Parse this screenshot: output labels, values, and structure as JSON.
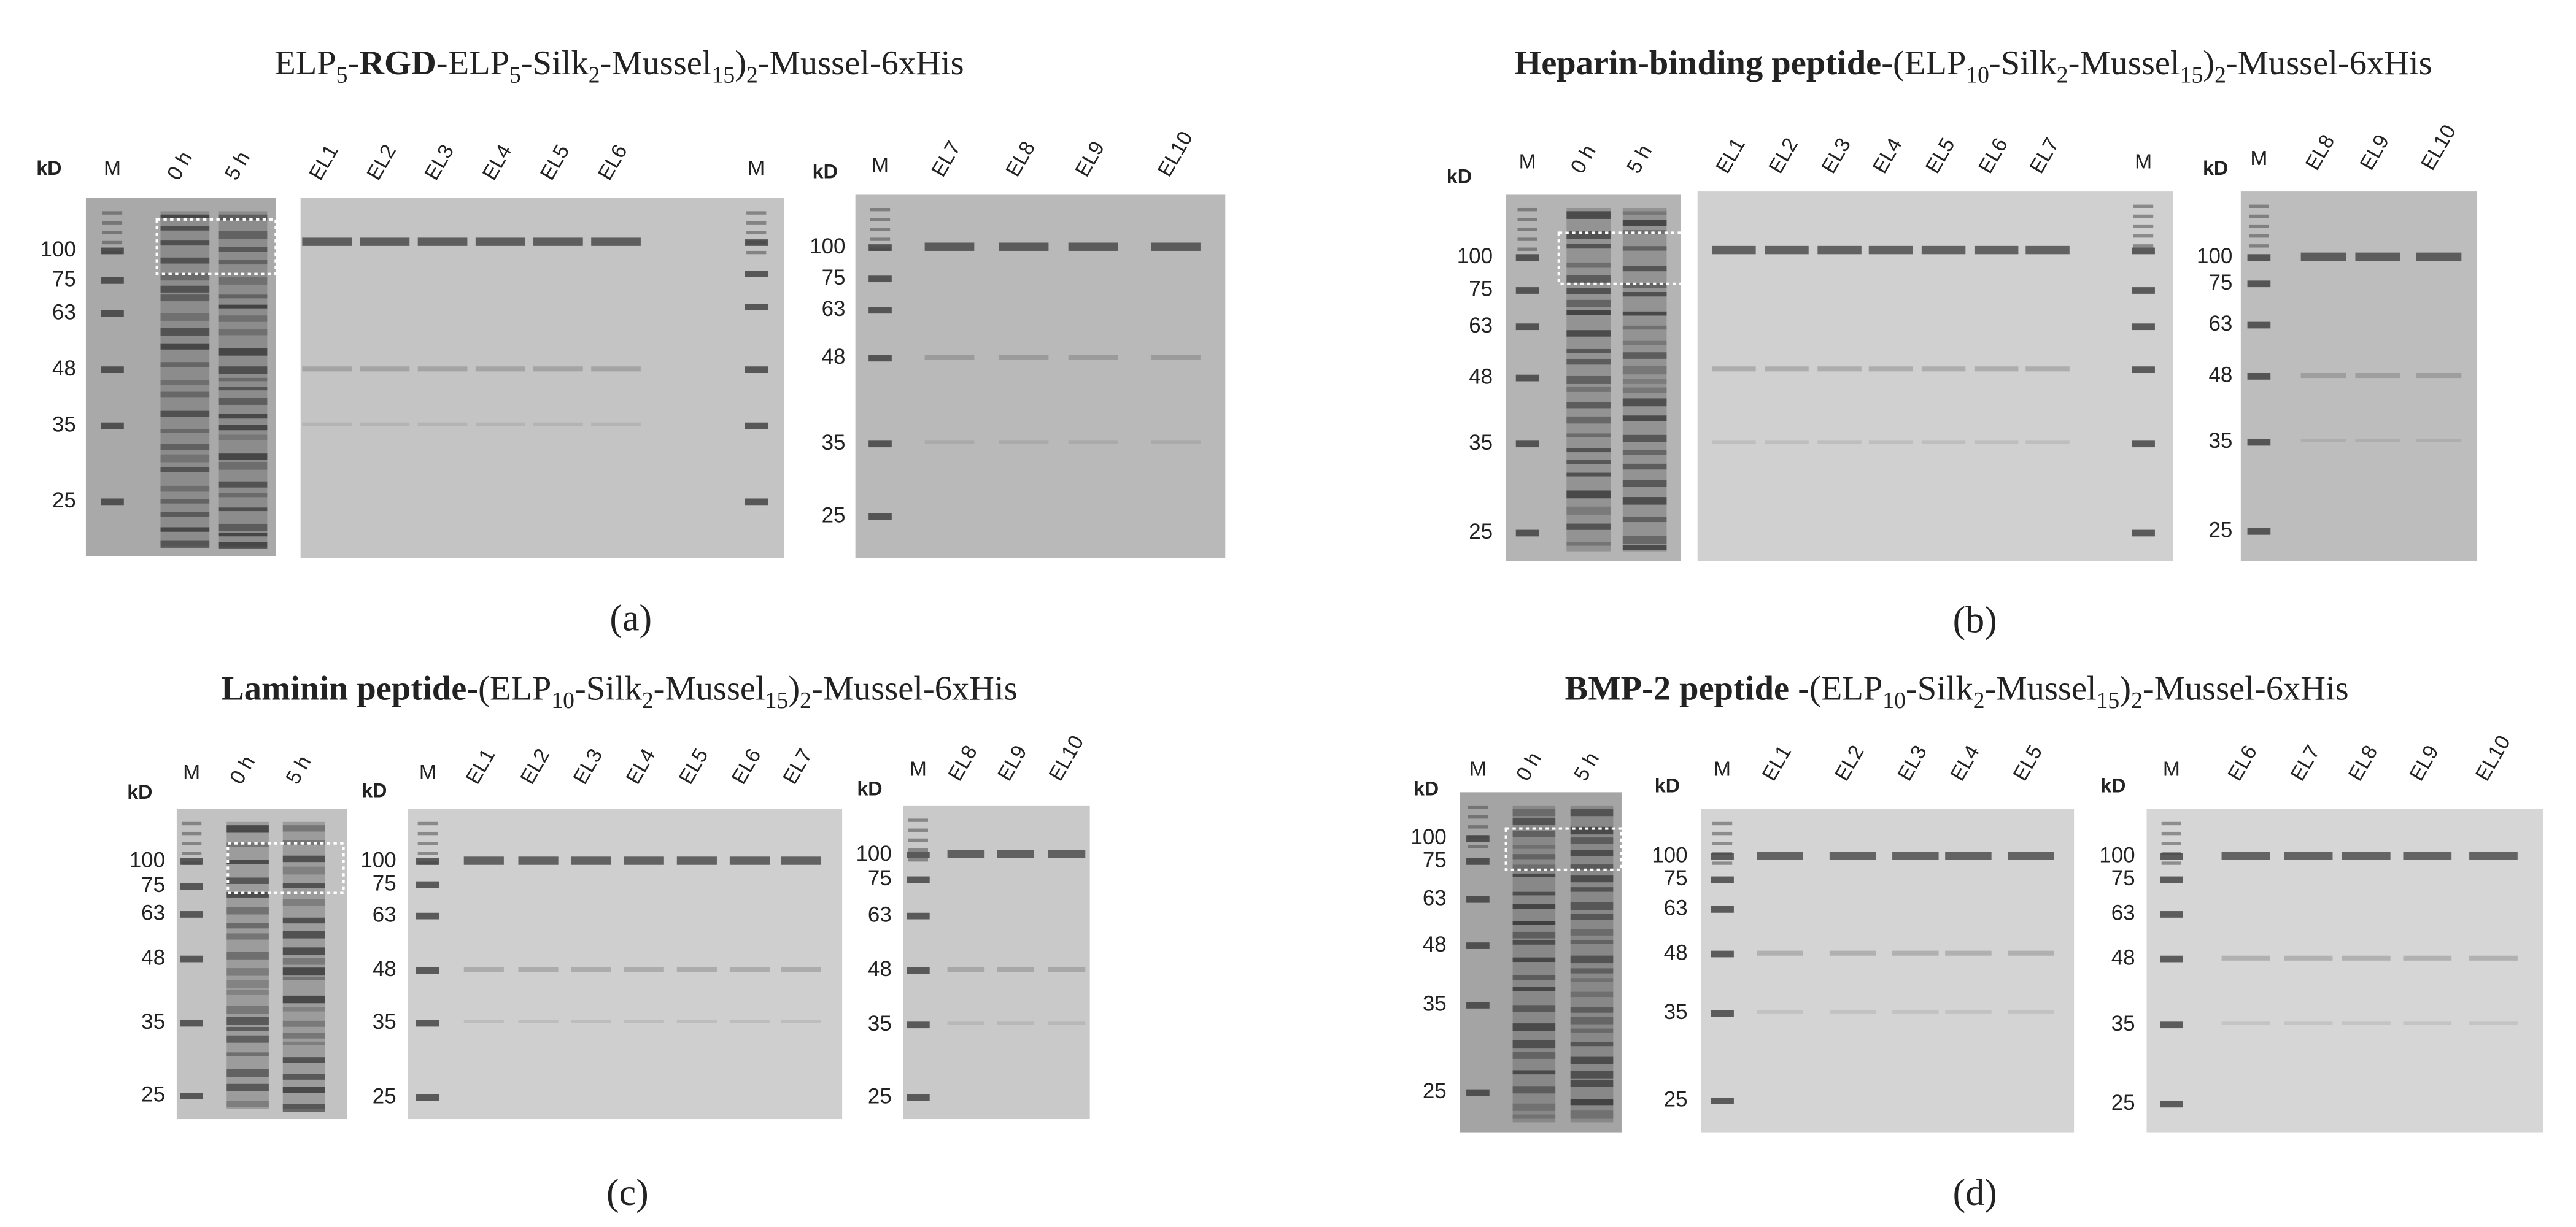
{
  "panels": [
    {
      "title": [
        {
          "text": "ELP",
          "style": "normal"
        },
        {
          "text": "5",
          "style": "sub"
        },
        {
          "text": "-",
          "style": "normal"
        },
        {
          "text": "RGD",
          "style": "bold"
        },
        {
          "text": "-ELP",
          "style": "normal"
        },
        {
          "text": "5",
          "style": "sub"
        },
        {
          "text": "-Silk",
          "style": "normal"
        },
        {
          "text": "2",
          "style": "sub"
        },
        {
          "text": "-Mussel",
          "style": "normal"
        },
        {
          "text": "15",
          "style": "sub"
        },
        {
          "text": ")",
          "style": "normal"
        },
        {
          "text": "2",
          "style": "sub"
        },
        {
          "text": "-Mussel-6xHis",
          "style": "normal"
        }
      ],
      "label": "(a)",
      "gels": [
        {
          "kd": "kD",
          "markers": [
            100,
            75,
            63,
            48,
            35,
            25
          ],
          "lanes": [
            "M",
            "0 h",
            "5 h"
          ]
        },
        {
          "lanes": [
            "EL1",
            "EL2",
            "EL3",
            "EL4",
            "EL5",
            "EL6",
            "M"
          ]
        },
        {
          "kd": "kD",
          "markers": [
            100,
            75,
            63,
            48,
            35,
            25
          ],
          "lanes": [
            "M",
            "EL7",
            "EL8",
            "EL9",
            "EL10"
          ]
        }
      ]
    },
    {
      "title": [
        {
          "text": "Heparin-binding peptide-",
          "style": "bold"
        },
        {
          "text": "(ELP",
          "style": "normal"
        },
        {
          "text": "10",
          "style": "sub"
        },
        {
          "text": "-Silk",
          "style": "normal"
        },
        {
          "text": "2",
          "style": "sub"
        },
        {
          "text": "-Mussel",
          "style": "normal"
        },
        {
          "text": "15",
          "style": "sub"
        },
        {
          "text": ")",
          "style": "normal"
        },
        {
          "text": "2",
          "style": "sub"
        },
        {
          "text": "-Mussel-6xHis",
          "style": "normal"
        }
      ],
      "label": "(b)",
      "gels": [
        {
          "kd": "kD",
          "markers": [
            100,
            75,
            63,
            48,
            35,
            25
          ],
          "lanes": [
            "M",
            "0 h",
            "5 h"
          ]
        },
        {
          "lanes": [
            "EL1",
            "EL2",
            "EL3",
            "EL4",
            "EL5",
            "EL6",
            "EL7",
            "M"
          ]
        },
        {
          "kd": "kD",
          "markers": [
            100,
            75,
            63,
            48,
            35,
            25
          ],
          "lanes": [
            "M",
            "EL8",
            "EL9",
            "EL10"
          ]
        }
      ]
    },
    {
      "title": [
        {
          "text": "Laminin peptide-",
          "style": "bold"
        },
        {
          "text": "(ELP",
          "style": "normal"
        },
        {
          "text": "10",
          "style": "sub"
        },
        {
          "text": "-Silk",
          "style": "normal"
        },
        {
          "text": "2",
          "style": "sub"
        },
        {
          "text": "-Mussel",
          "style": "normal"
        },
        {
          "text": "15",
          "style": "sub"
        },
        {
          "text": ")",
          "style": "normal"
        },
        {
          "text": "2",
          "style": "sub"
        },
        {
          "text": "-Mussel-6xHis",
          "style": "normal"
        }
      ],
      "label": "(c)",
      "gels": [
        {
          "kd": "kD",
          "markers": [
            100,
            75,
            63,
            48,
            35,
            25
          ],
          "lanes": [
            "M",
            "0 h",
            "5 h"
          ]
        },
        {
          "kd": "kD",
          "markers": [
            100,
            75,
            63,
            48,
            35,
            25
          ],
          "lanes": [
            "M",
            "EL1",
            "EL2",
            "EL3",
            "EL4",
            "EL5",
            "EL6",
            "EL7"
          ]
        },
        {
          "kd": "kD",
          "markers": [
            100,
            75,
            63,
            48,
            35,
            25
          ],
          "lanes": [
            "M",
            "EL8",
            "EL9",
            "EL10"
          ]
        }
      ]
    },
    {
      "title": [
        {
          "text": "BMP-2 peptide -",
          "style": "bold"
        },
        {
          "text": "(ELP",
          "style": "normal"
        },
        {
          "text": "10",
          "style": "sub"
        },
        {
          "text": "-Silk",
          "style": "normal"
        },
        {
          "text": "2",
          "style": "sub"
        },
        {
          "text": "-Mussel",
          "style": "normal"
        },
        {
          "text": "15",
          "style": "sub"
        },
        {
          "text": ")",
          "style": "normal"
        },
        {
          "text": "2",
          "style": "sub"
        },
        {
          "text": "-Mussel-6xHis",
          "style": "normal"
        }
      ],
      "label": "(d)",
      "gels": [
        {
          "kd": "kD",
          "markers": [
            100,
            75,
            63,
            48,
            35,
            25
          ],
          "lanes": [
            "M",
            "0 h",
            "5 h"
          ]
        },
        {
          "kd": "kD",
          "markers": [
            100,
            75,
            63,
            48,
            35,
            25
          ],
          "lanes": [
            "M",
            "EL1",
            "EL2",
            "EL3",
            "EL4",
            "EL5"
          ]
        },
        {
          "kd": "kD",
          "markers": [
            100,
            75,
            63,
            48,
            35,
            25
          ],
          "lanes": [
            "M",
            "EL6",
            "EL7",
            "EL8",
            "EL9",
            "EL10"
          ]
        }
      ]
    }
  ]
}
